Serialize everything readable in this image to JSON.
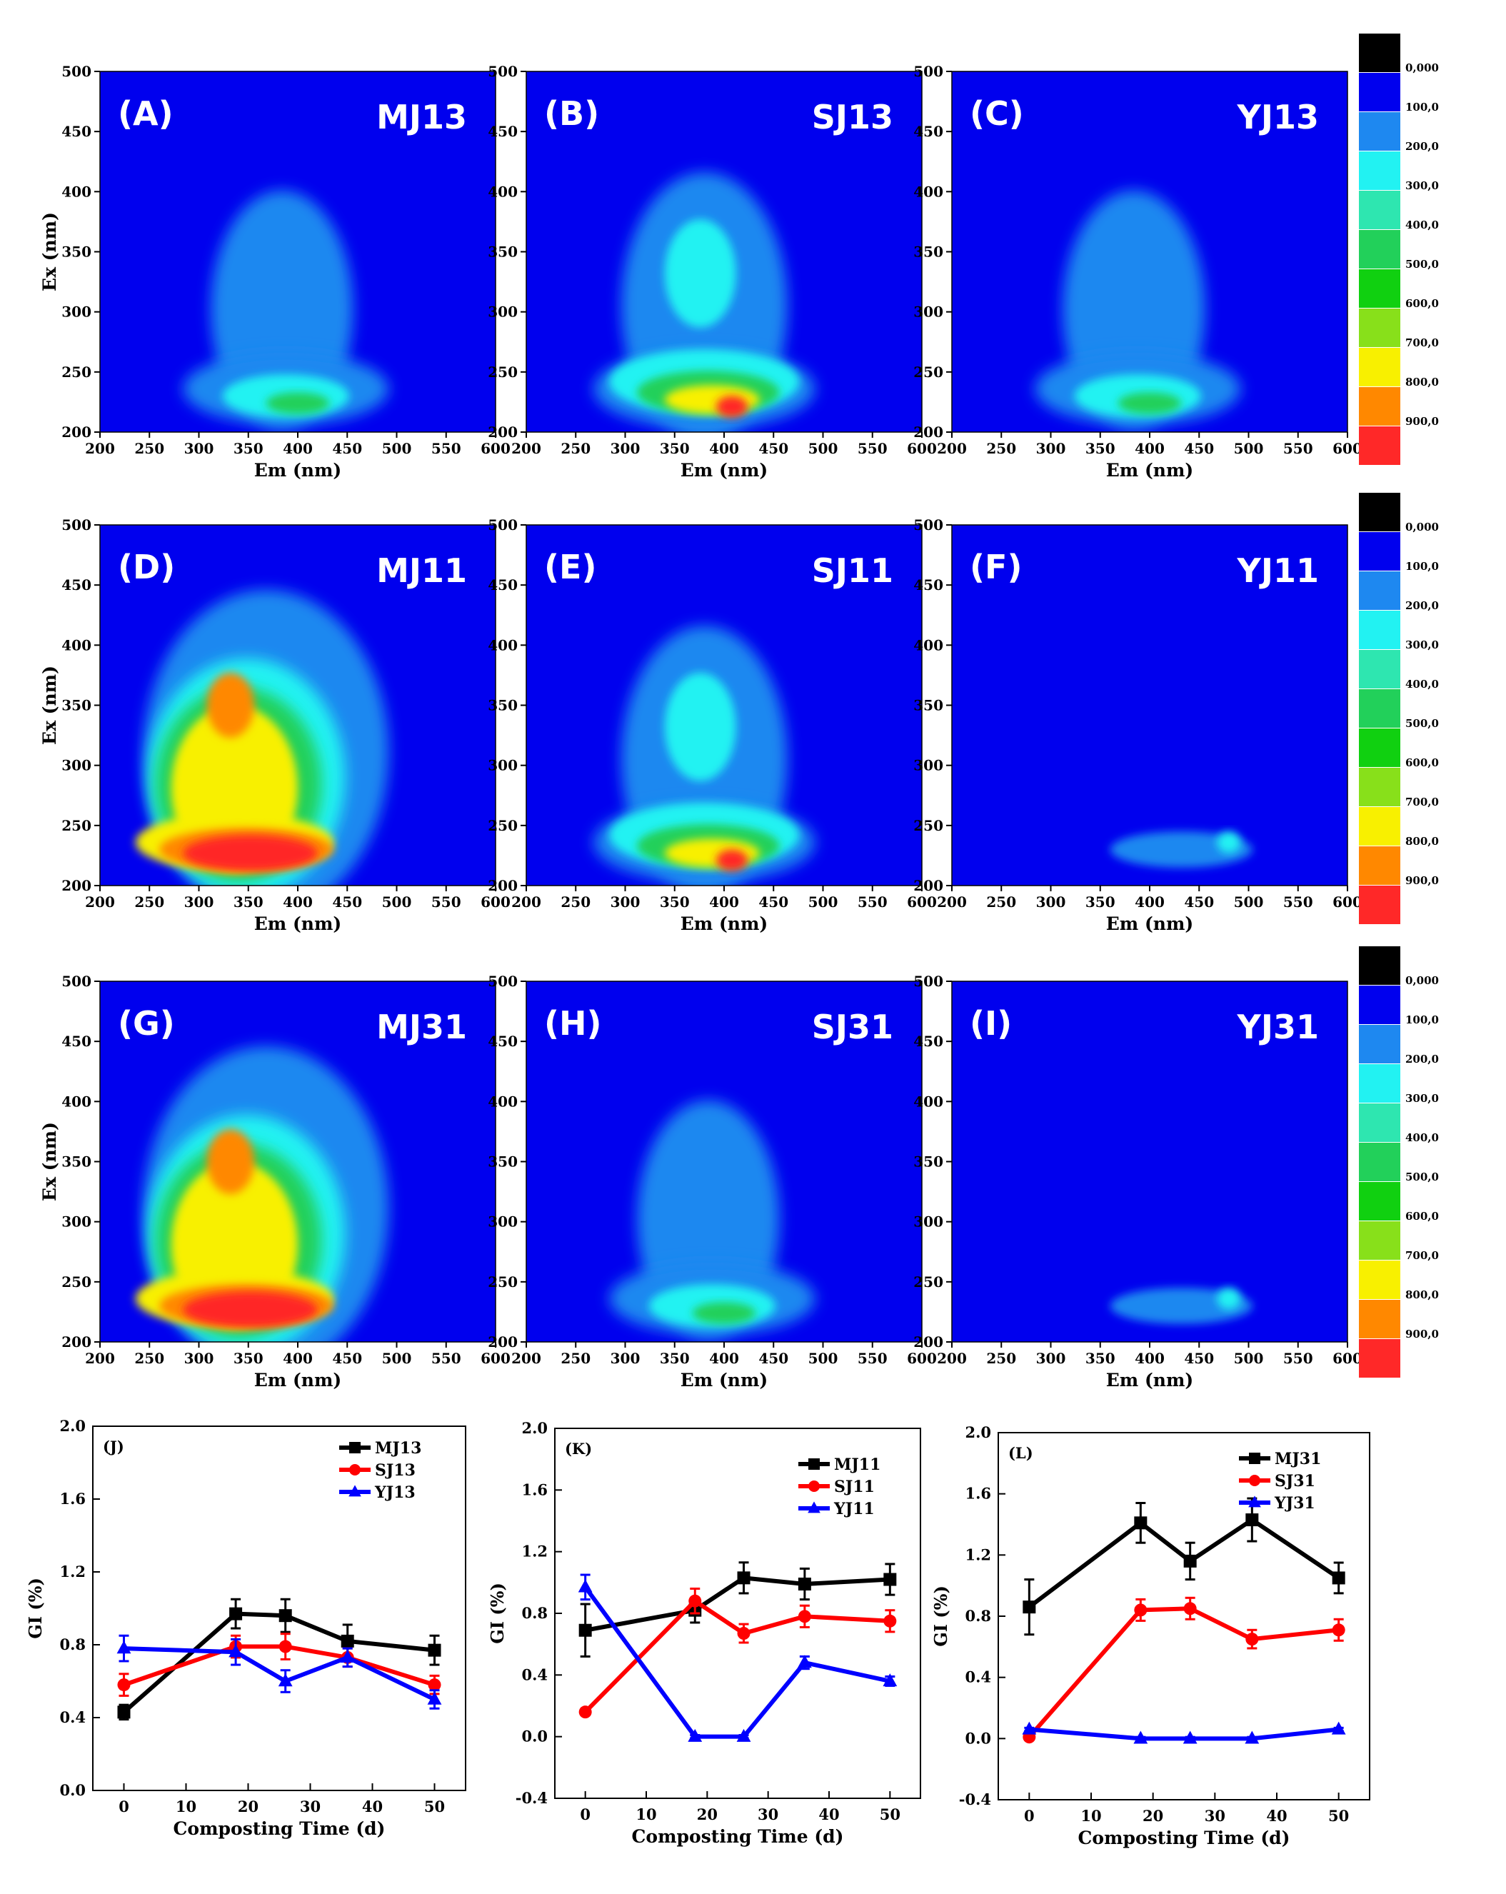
{
  "colorbar_levels": [
    "0,000",
    "100,0",
    "200,0",
    "300,0",
    "400,0",
    "500,0",
    "600,0",
    "700,0",
    "800,0",
    "900,0"
  ],
  "colorbar_colors": [
    "#000000",
    "#0000ee",
    "#1e88f0",
    "#22f2f2",
    "#2ee6b0",
    "#22d05a",
    "#10d010",
    "#88e01a",
    "#f8f000",
    "#ff8800",
    "#ff2828"
  ],
  "eem_axes": {
    "x_ticks": [
      "200",
      "250",
      "300",
      "350",
      "400",
      "450",
      "500",
      "550",
      "600"
    ],
    "y_ticks": [
      "200",
      "250",
      "300",
      "350",
      "400",
      "450",
      "500"
    ],
    "xlabel": "Em (nm)",
    "ylabel": "Ex (nm)"
  },
  "panels": [
    {
      "id": "A",
      "label": "(A)",
      "sample": "MJ13",
      "intensity": "low"
    },
    {
      "id": "B",
      "label": "(B)",
      "sample": "SJ13",
      "intensity": "mid"
    },
    {
      "id": "C",
      "label": "(C)",
      "sample": "YJ13",
      "intensity": "low"
    },
    {
      "id": "D",
      "label": "(D)",
      "sample": "MJ11",
      "intensity": "high"
    },
    {
      "id": "E",
      "label": "(E)",
      "sample": "SJ11",
      "intensity": "mid"
    },
    {
      "id": "F",
      "label": "(F)",
      "sample": "YJ11",
      "intensity": "verylow"
    },
    {
      "id": "G",
      "label": "(G)",
      "sample": "MJ31",
      "intensity": "high"
    },
    {
      "id": "H",
      "label": "(H)",
      "sample": "SJ31",
      "intensity": "low"
    },
    {
      "id": "I",
      "label": "(I)",
      "sample": "YJ31",
      "intensity": "verylow"
    }
  ],
  "chart_data": [
    {
      "type": "line",
      "label": "(J)",
      "xlabel": "Composting Time (d)",
      "ylabel": "GI (%)",
      "x": [
        0,
        18,
        26,
        36,
        50
      ],
      "xlim": [
        -5,
        55
      ],
      "ylim": [
        0,
        2.0
      ],
      "x_ticks": [
        "0",
        "10",
        "20",
        "30",
        "40",
        "50"
      ],
      "y_ticks": [
        "0.0",
        "0.4",
        "0.8",
        "1.2",
        "1.6",
        "2.0"
      ],
      "series": [
        {
          "name": "MJ13",
          "color": "#000000",
          "marker": "square",
          "values": [
            0.43,
            0.97,
            0.96,
            0.82,
            0.77
          ],
          "errors": [
            0.04,
            0.08,
            0.09,
            0.09,
            0.08
          ]
        },
        {
          "name": "SJ13",
          "color": "#ff0000",
          "marker": "circle",
          "values": [
            0.58,
            0.79,
            0.79,
            0.73,
            0.58
          ],
          "errors": [
            0.06,
            0.06,
            0.07,
            0.05,
            0.05
          ]
        },
        {
          "name": "YJ13",
          "color": "#0000ff",
          "marker": "triangle",
          "values": [
            0.78,
            0.76,
            0.6,
            0.73,
            0.5
          ],
          "errors": [
            0.07,
            0.07,
            0.06,
            0.05,
            0.05
          ]
        }
      ]
    },
    {
      "type": "line",
      "label": "(K)",
      "xlabel": "Composting Time (d)",
      "ylabel": "GI (%)",
      "x": [
        0,
        18,
        26,
        36,
        50
      ],
      "xlim": [
        -5,
        55
      ],
      "ylim": [
        -0.4,
        2.0
      ],
      "x_ticks": [
        "0",
        "10",
        "20",
        "30",
        "40",
        "50"
      ],
      "y_ticks": [
        "-0.4",
        "0.0",
        "0.4",
        "0.8",
        "1.2",
        "1.6",
        "2.0"
      ],
      "series": [
        {
          "name": "MJ11",
          "color": "#000000",
          "marker": "square",
          "values": [
            0.69,
            0.82,
            1.03,
            0.99,
            1.02
          ],
          "errors": [
            0.17,
            0.08,
            0.1,
            0.1,
            0.1
          ]
        },
        {
          "name": "SJ11",
          "color": "#ff0000",
          "marker": "circle",
          "values": [
            0.16,
            0.88,
            0.67,
            0.78,
            0.75
          ],
          "errors": [
            0.02,
            0.08,
            0.06,
            0.07,
            0.07
          ]
        },
        {
          "name": "YJ11",
          "color": "#0000ff",
          "marker": "triangle",
          "values": [
            0.97,
            0.0,
            0.0,
            0.48,
            0.36
          ],
          "errors": [
            0.08,
            0.01,
            0.01,
            0.04,
            0.03
          ]
        }
      ]
    },
    {
      "type": "line",
      "label": "(L)",
      "xlabel": "Composting Time (d)",
      "ylabel": "GI (%)",
      "x": [
        0,
        18,
        26,
        36,
        50
      ],
      "xlim": [
        -5,
        55
      ],
      "ylim": [
        -0.4,
        2.0
      ],
      "x_ticks": [
        "0",
        "10",
        "20",
        "30",
        "40",
        "50"
      ],
      "y_ticks": [
        "-0.4",
        "0.0",
        "0.4",
        "0.8",
        "1.2",
        "1.6",
        "2.0"
      ],
      "series": [
        {
          "name": "MJ31",
          "color": "#000000",
          "marker": "square",
          "values": [
            0.86,
            1.41,
            1.16,
            1.43,
            1.05
          ],
          "errors": [
            0.18,
            0.13,
            0.12,
            0.14,
            0.1
          ]
        },
        {
          "name": "SJ31",
          "color": "#ff0000",
          "marker": "circle",
          "values": [
            0.01,
            0.84,
            0.85,
            0.65,
            0.71
          ],
          "errors": [
            0.02,
            0.07,
            0.07,
            0.06,
            0.07
          ]
        },
        {
          "name": "YJ31",
          "color": "#0000ff",
          "marker": "triangle",
          "values": [
            0.06,
            0.0,
            0.0,
            0.0,
            0.06
          ],
          "errors": [
            0.01,
            0.01,
            0.01,
            0.01,
            0.01
          ]
        }
      ]
    }
  ]
}
